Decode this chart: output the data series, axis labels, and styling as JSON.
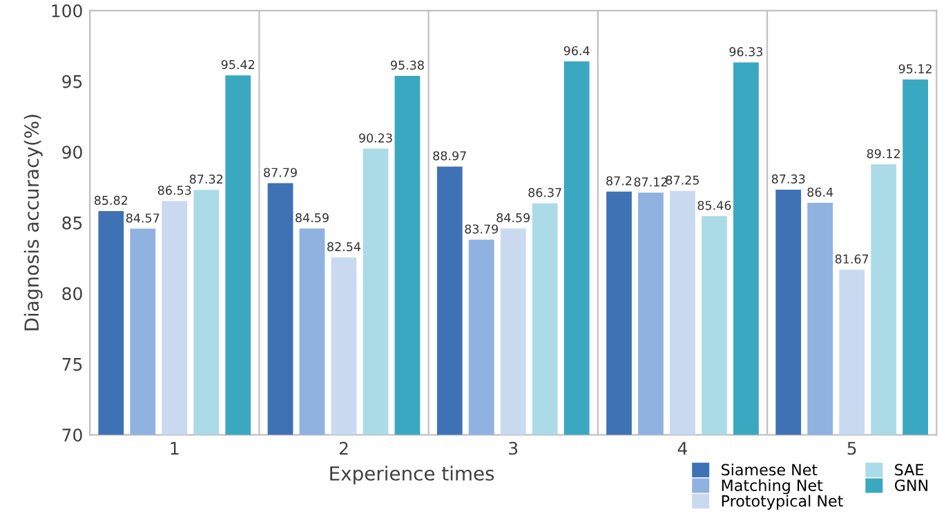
{
  "chart_data": {
    "type": "bar",
    "xlabel": "Experience times",
    "ylabel": "Diagnosis accuracy(%)",
    "categories": [
      "1",
      "2",
      "3",
      "4",
      "5"
    ],
    "series": [
      {
        "name": "Siamese Net",
        "color": "#3f72b5",
        "values": [
          85.82,
          87.79,
          88.97,
          87.2,
          87.33
        ]
      },
      {
        "name": "Matching Net",
        "color": "#8fb2e0",
        "values": [
          84.57,
          84.59,
          83.79,
          87.12,
          86.4
        ]
      },
      {
        "name": "Prototypical Net",
        "color": "#c9d9f0",
        "values": [
          86.53,
          82.54,
          84.59,
          87.25,
          81.67
        ]
      },
      {
        "name": "SAE",
        "color": "#acdbe8",
        "values": [
          87.32,
          90.23,
          86.37,
          85.46,
          89.12
        ]
      },
      {
        "name": "GNN",
        "color": "#3aa8c0",
        "values": [
          95.42,
          95.38,
          96.4,
          96.33,
          95.12
        ]
      }
    ],
    "ylim": [
      70,
      100
    ],
    "yticks": [
      70,
      75,
      80,
      85,
      90,
      95,
      100
    ],
    "grid": "x",
    "legend": "bottom right",
    "data_labels": true
  }
}
